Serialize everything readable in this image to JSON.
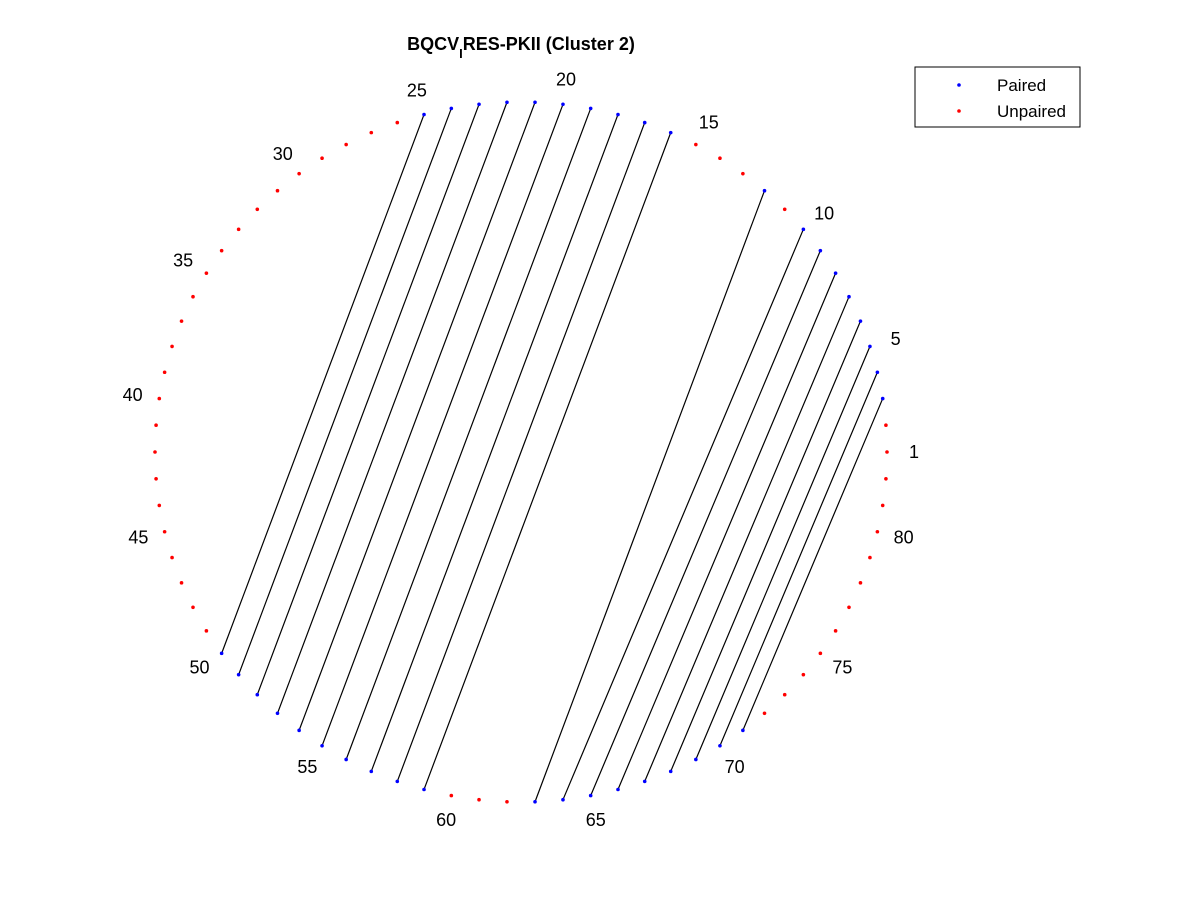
{
  "figure": {
    "title_main": "BQCV",
    "title_subscript": "I",
    "title_rest": "RES-PKII (Cluster 2)"
  },
  "chart_data": {
    "type": "arc",
    "n_positions": 82,
    "start_position": 1,
    "direction": "counterclockwise from right",
    "index_labels": [
      1,
      5,
      10,
      15,
      20,
      25,
      30,
      35,
      40,
      45,
      50,
      55,
      60,
      65,
      70,
      75,
      80
    ],
    "pairs": [
      [
        3,
        71
      ],
      [
        4,
        70
      ],
      [
        5,
        69
      ],
      [
        6,
        68
      ],
      [
        7,
        67
      ],
      [
        8,
        66
      ],
      [
        9,
        65
      ],
      [
        10,
        64
      ],
      [
        12,
        63
      ],
      [
        16,
        59
      ],
      [
        17,
        58
      ],
      [
        18,
        57
      ],
      [
        19,
        56
      ],
      [
        20,
        55
      ],
      [
        21,
        54
      ],
      [
        22,
        53
      ],
      [
        23,
        52
      ],
      [
        24,
        51
      ],
      [
        25,
        50
      ]
    ],
    "series": [
      {
        "name": "Paired",
        "color": "#0000ff"
      },
      {
        "name": "Unpaired",
        "color": "#ff0000"
      }
    ],
    "pair_line_color": "#000000",
    "legend_position": "top-right"
  }
}
